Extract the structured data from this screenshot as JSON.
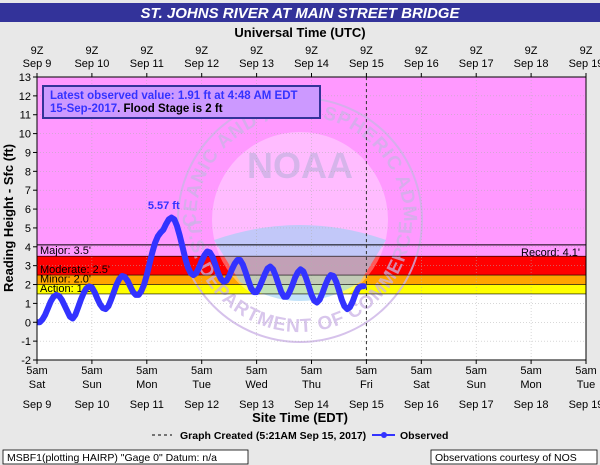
{
  "chart_data": {
    "type": "line",
    "title": "ST. JOHNS RIVER AT MAIN STREET BRIDGE",
    "top_axis_title": "Universal Time (UTC)",
    "xlabel": "Site Time (EDT)",
    "ylabel": "Reading Height - Sfc (ft)",
    "ylim": [
      -2,
      13
    ],
    "yticks": [
      -2,
      -1,
      0,
      1,
      2,
      3,
      4,
      5,
      6,
      7,
      8,
      9,
      10,
      11,
      12,
      13
    ],
    "days": [
      {
        "time_local": "5am",
        "dow": "Sat",
        "date": "Sep 9",
        "time_utc": "9Z"
      },
      {
        "time_local": "5am",
        "dow": "Sun",
        "date": "Sep 10",
        "time_utc": "9Z"
      },
      {
        "time_local": "5am",
        "dow": "Mon",
        "date": "Sep 11",
        "time_utc": "9Z"
      },
      {
        "time_local": "5am",
        "dow": "Tue",
        "date": "Sep 12",
        "time_utc": "9Z"
      },
      {
        "time_local": "5am",
        "dow": "Wed",
        "date": "Sep 13",
        "time_utc": "9Z"
      },
      {
        "time_local": "5am",
        "dow": "Thu",
        "date": "Sep 14",
        "time_utc": "9Z"
      },
      {
        "time_local": "5am",
        "dow": "Fri",
        "date": "Sep 15",
        "time_utc": "9Z"
      },
      {
        "time_local": "5am",
        "dow": "Sat",
        "date": "Sep 16",
        "time_utc": "9Z"
      },
      {
        "time_local": "5am",
        "dow": "Sun",
        "date": "Sep 17",
        "time_utc": "9Z"
      },
      {
        "time_local": "5am",
        "dow": "Mon",
        "date": "Sep 18",
        "time_utc": "9Z"
      },
      {
        "time_local": "5am",
        "dow": "Tue",
        "date": "Sep 19",
        "time_utc": "9Z"
      }
    ],
    "flood_categories": [
      {
        "name": "Action",
        "label": "Action: 1.5'",
        "from": 1.5,
        "to": 2.0,
        "color": "#ffff00"
      },
      {
        "name": "Minor",
        "label": "Minor: 2.0'",
        "from": 2.0,
        "to": 2.5,
        "color": "#ffa500"
      },
      {
        "name": "Moderate",
        "label": "Moderate: 2.5'",
        "from": 2.5,
        "to": 3.5,
        "color": "#ff0000"
      },
      {
        "name": "Major",
        "label": "Major: 3.5'",
        "from": 3.5,
        "to": 13,
        "color": "#cc33ff"
      }
    ],
    "record": {
      "label": "Record: 4.1'",
      "value": 4.1
    },
    "graph_created": {
      "day": 6.0,
      "legend": "Graph Created (5:21AM Sep 15, 2017)"
    },
    "peak": {
      "label": "5.57 ft",
      "day": 2.42,
      "value": 5.57
    },
    "latest_box": {
      "line1": "Latest observed value: 1.91 ft at 4:48 AM EDT",
      "line2_date": "15-Sep-2017",
      "line2_rest": ". Flood Stage is 2 ft"
    },
    "series": [
      {
        "name": "Observed",
        "color": "#3333ff",
        "points": [
          [
            0.0,
            0.0
          ],
          [
            0.05,
            0.0
          ],
          [
            0.1,
            0.15
          ],
          [
            0.15,
            0.4
          ],
          [
            0.2,
            0.75
          ],
          [
            0.25,
            1.1
          ],
          [
            0.3,
            1.35
          ],
          [
            0.35,
            1.45
          ],
          [
            0.4,
            1.4
          ],
          [
            0.45,
            1.2
          ],
          [
            0.5,
            0.9
          ],
          [
            0.55,
            0.6
          ],
          [
            0.6,
            0.3
          ],
          [
            0.65,
            0.2
          ],
          [
            0.7,
            0.4
          ],
          [
            0.75,
            0.8
          ],
          [
            0.8,
            1.2
          ],
          [
            0.85,
            1.55
          ],
          [
            0.9,
            1.8
          ],
          [
            0.95,
            1.9
          ],
          [
            1.0,
            1.85
          ],
          [
            1.05,
            1.6
          ],
          [
            1.1,
            1.25
          ],
          [
            1.15,
            0.95
          ],
          [
            1.2,
            0.75
          ],
          [
            1.25,
            0.7
          ],
          [
            1.3,
            0.85
          ],
          [
            1.35,
            1.2
          ],
          [
            1.4,
            1.6
          ],
          [
            1.45,
            2.0
          ],
          [
            1.5,
            2.3
          ],
          [
            1.55,
            2.45
          ],
          [
            1.6,
            2.4
          ],
          [
            1.65,
            2.2
          ],
          [
            1.7,
            1.9
          ],
          [
            1.75,
            1.6
          ],
          [
            1.8,
            1.45
          ],
          [
            1.85,
            1.45
          ],
          [
            1.9,
            1.65
          ],
          [
            1.95,
            2.0
          ],
          [
            2.0,
            2.5
          ],
          [
            2.05,
            3.1
          ],
          [
            2.1,
            3.7
          ],
          [
            2.15,
            4.2
          ],
          [
            2.2,
            4.55
          ],
          [
            2.25,
            4.75
          ],
          [
            2.3,
            4.9
          ],
          [
            2.35,
            5.2
          ],
          [
            2.4,
            5.45
          ],
          [
            2.45,
            5.55
          ],
          [
            2.5,
            5.45
          ],
          [
            2.55,
            5.1
          ],
          [
            2.6,
            4.6
          ],
          [
            2.65,
            4.0
          ],
          [
            2.7,
            3.4
          ],
          [
            2.75,
            2.9
          ],
          [
            2.8,
            2.6
          ],
          [
            2.85,
            2.5
          ],
          [
            2.9,
            2.6
          ],
          [
            2.95,
            2.9
          ],
          [
            3.0,
            3.25
          ],
          [
            3.05,
            3.55
          ],
          [
            3.1,
            3.75
          ],
          [
            3.15,
            3.7
          ],
          [
            3.2,
            3.45
          ],
          [
            3.25,
            3.05
          ],
          [
            3.3,
            2.6
          ],
          [
            3.35,
            2.3
          ],
          [
            3.4,
            2.15
          ],
          [
            3.45,
            2.2
          ],
          [
            3.5,
            2.45
          ],
          [
            3.55,
            2.8
          ],
          [
            3.6,
            3.1
          ],
          [
            3.65,
            3.3
          ],
          [
            3.7,
            3.3
          ],
          [
            3.75,
            3.05
          ],
          [
            3.8,
            2.65
          ],
          [
            3.85,
            2.2
          ],
          [
            3.9,
            1.8
          ],
          [
            3.95,
            1.6
          ],
          [
            4.0,
            1.6
          ],
          [
            4.05,
            1.85
          ],
          [
            4.1,
            2.2
          ],
          [
            4.15,
            2.55
          ],
          [
            4.2,
            2.85
          ],
          [
            4.25,
            2.95
          ],
          [
            4.3,
            2.8
          ],
          [
            4.35,
            2.45
          ],
          [
            4.4,
            2.0
          ],
          [
            4.45,
            1.6
          ],
          [
            4.5,
            1.35
          ],
          [
            4.55,
            1.35
          ],
          [
            4.6,
            1.6
          ],
          [
            4.65,
            1.95
          ],
          [
            4.7,
            2.35
          ],
          [
            4.75,
            2.65
          ],
          [
            4.8,
            2.8
          ],
          [
            4.85,
            2.7
          ],
          [
            4.9,
            2.35
          ],
          [
            4.95,
            1.9
          ],
          [
            5.0,
            1.45
          ],
          [
            5.05,
            1.15
          ],
          [
            5.1,
            1.05
          ],
          [
            5.15,
            1.2
          ],
          [
            5.2,
            1.55
          ],
          [
            5.25,
            1.95
          ],
          [
            5.3,
            2.3
          ],
          [
            5.35,
            2.5
          ],
          [
            5.4,
            2.45
          ],
          [
            5.45,
            2.15
          ],
          [
            5.5,
            1.7
          ],
          [
            5.55,
            1.2
          ],
          [
            5.6,
            0.85
          ],
          [
            5.65,
            0.7
          ],
          [
            5.7,
            0.8
          ],
          [
            5.75,
            1.1
          ],
          [
            5.8,
            1.5
          ],
          [
            5.85,
            1.8
          ],
          [
            5.9,
            1.9
          ],
          [
            5.95,
            1.91
          ]
        ]
      }
    ]
  },
  "footer": {
    "left": "MSBF1(plotting HAIRP) \"Gage 0\" Datum: n/a",
    "right": "Observations courtesy of NOS"
  },
  "colors": {
    "title_bg": "#33339a",
    "title_text": "#ffffff",
    "above_category": "#ff99ff",
    "below_category": "#ffffff",
    "box_bg": "#cc99ff",
    "box_border": "#333399",
    "box_text": "#3333ff",
    "frame_bg": "#e8e8e8",
    "watermark": "#ccb3e6"
  },
  "watermark": {
    "center": "NOAA",
    "arc_top": "NATIONAL OCEANIC AND ATMOSPHERIC ADMINISTRATION",
    "arc_bottom": "U.S. DEPARTMENT OF COMMERCE"
  }
}
